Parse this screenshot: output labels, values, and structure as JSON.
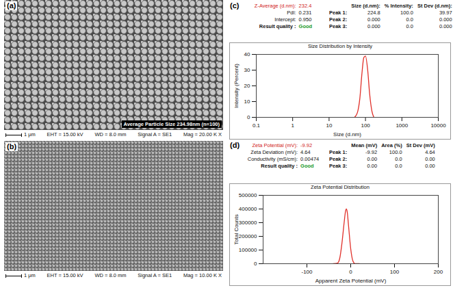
{
  "panels": {
    "a": {
      "letter": "(a)",
      "overlay_label": "Average Particle Size 234.98nm (n=100)",
      "info_bar": [
        "1 μm",
        "EHT = 15.00 kV",
        "WD = 8.0 mm",
        "Signal A = SE1",
        "Mag = 20.00 K X"
      ]
    },
    "b": {
      "letter": "(b)",
      "info_bar": [
        "1 μm",
        "EHT = 15.00 kV",
        "WD = 8.0 mm",
        "Signal A = SE1",
        "Mag = 10.00 K X"
      ]
    },
    "c": {
      "letter": "(c)",
      "summary": [
        [
          "Z-Average (d.nm):",
          "232.4"
        ],
        [
          "PdI:",
          "0.231"
        ],
        [
          "Intercept:",
          "0.950"
        ]
      ],
      "quality_label": "Result quality :",
      "quality": "Good",
      "table": {
        "header": [
          "Size (d.nm):",
          "% Intensity:",
          "St Dev (d.nm):"
        ],
        "rows": [
          [
            "Peak 1:",
            "224.8",
            "100.0",
            "39.97"
          ],
          [
            "Peak 2:",
            "0.000",
            "0.0",
            "0.000"
          ],
          [
            "Peak 3:",
            "0.000",
            "0.0",
            "0.000"
          ]
        ]
      }
    },
    "d": {
      "letter": "(d)",
      "summary": [
        [
          "Zeta Potential (mV):",
          "-9.92"
        ],
        [
          "Zeta Deviation (mV):",
          "4.64"
        ],
        [
          "Conductivity (mS/cm):",
          "0.00474"
        ]
      ],
      "quality_label": "Result quality :",
      "quality": "Good",
      "table": {
        "header": [
          "Mean (mV)",
          "Area (%)",
          "St Dev (mV)"
        ],
        "rows": [
          [
            "Peak 1:",
            "-9.92",
            "100.0",
            "4.64"
          ],
          [
            "Peak 2:",
            "0.00",
            "0.0",
            "0.00"
          ],
          [
            "Peak 3:",
            "0.00",
            "0.0",
            "0.00"
          ]
        ]
      }
    }
  },
  "chart_data": [
    {
      "type": "line",
      "title": "Size Distribution by Intensity",
      "x_label": "Size (d.nm)",
      "y_label": "Intensity (Percent)",
      "x": [
        50,
        60,
        70,
        80,
        90,
        100,
        115,
        130,
        150,
        170
      ],
      "values": [
        0,
        3,
        12,
        28,
        38,
        39,
        30,
        15,
        4,
        0
      ],
      "color": "#e0302a",
      "log": "x",
      "grid": false,
      "xlim": [
        0.1,
        10000
      ],
      "xticks": [
        0.1,
        1,
        10,
        100,
        1000,
        10000
      ],
      "ylim": [
        0,
        40
      ],
      "yticks": [
        0,
        10,
        20,
        30,
        40
      ]
    },
    {
      "type": "line",
      "title": "Zeta Potential Distribution",
      "x_label": "Apparent Zeta Potential (mV)",
      "y_label": "Total Counts",
      "x": [
        -40,
        -30,
        -25,
        -20,
        -15,
        -12,
        -10,
        -8,
        -5,
        0,
        5,
        10,
        20
      ],
      "values": [
        0,
        5000,
        40000,
        150000,
        300000,
        380000,
        400000,
        380000,
        280000,
        110000,
        20000,
        0,
        0
      ],
      "color": "#e0302a",
      "grid": false,
      "xlim": [
        -200,
        200
      ],
      "xticks": [
        -100,
        0,
        100,
        200
      ],
      "ylim": [
        0,
        500000
      ],
      "yticks": [
        0,
        100000,
        200000,
        300000,
        400000,
        500000
      ]
    }
  ]
}
